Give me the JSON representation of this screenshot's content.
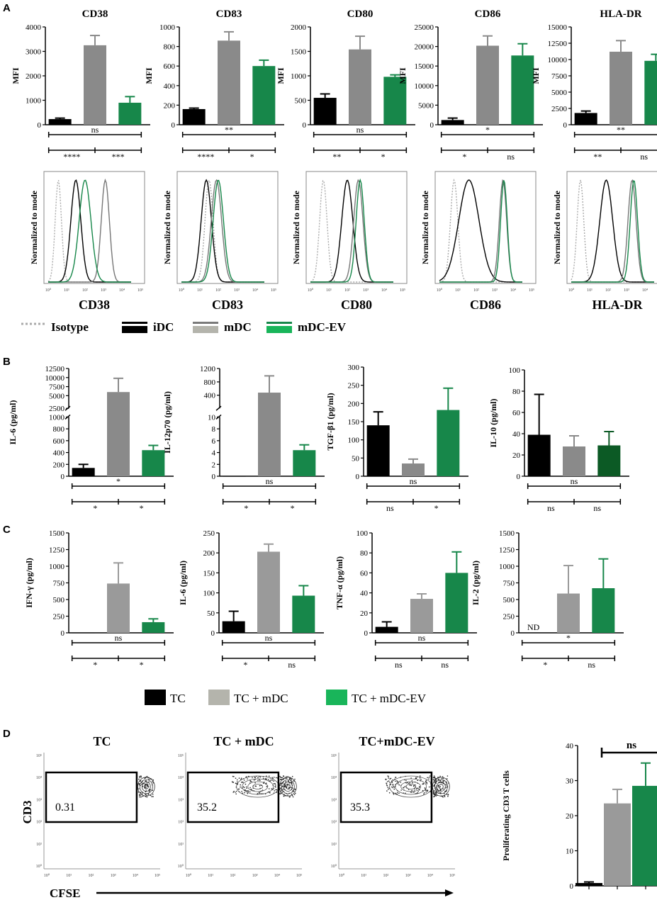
{
  "panels": {
    "a": "A",
    "b": "B",
    "c": "C",
    "d": "D"
  },
  "colors": {
    "idc": "#000000",
    "mdc": "#8a8a8a",
    "mdc_ev": "#17874a",
    "il10_ev": "#0c5a25",
    "tc": "#000000",
    "tc_mdc": "#9a9a9a",
    "tc_mdc_ev": "#17874a",
    "isotype": "#aaaaaa"
  },
  "legend_a": {
    "isotype": "Isotype",
    "idc": "iDC",
    "mdc": "mDC",
    "mdc_ev": "mDC-EV"
  },
  "legend_c": {
    "tc": "TC",
    "tc_mdc": "TC + mDC",
    "tc_mdc_ev": "TC + mDC-EV"
  },
  "histogram": {
    "ylabel": "Normalized to mode",
    "xticks": [
      "10⁰",
      "10¹",
      "10²",
      "10³",
      "10⁴",
      "10⁵"
    ],
    "markers": [
      "CD38",
      "CD83",
      "CD80",
      "CD86",
      "HLA-DR"
    ]
  },
  "flow": {
    "titles": [
      "TC",
      "TC + mDC",
      "TC+mDC-EV"
    ],
    "gates": [
      "0.31",
      "35.2",
      "35.3"
    ],
    "ylabel": "CD3",
    "xlabel": "CFSE",
    "ticks": [
      "10⁰",
      "10¹",
      "10²",
      "10³",
      "10⁴",
      "10⁵"
    ]
  },
  "chart_data": [
    {
      "type": "bar",
      "panel": "A",
      "title": "CD38",
      "ylabel": "MFI",
      "ylim": [
        0,
        4000
      ],
      "yticks": [
        "0",
        "1000",
        "2000",
        "3000",
        "4000"
      ],
      "categories": [
        "iDC",
        "mDC",
        "mDC-EV"
      ],
      "values": [
        230,
        3250,
        900
      ],
      "errors": [
        40,
        400,
        250
      ],
      "sig_top": "ns",
      "sig_bottom": [
        "****",
        "***"
      ]
    },
    {
      "type": "bar",
      "panel": "A",
      "title": "CD83",
      "ylabel": "MFI",
      "ylim": [
        0,
        1000
      ],
      "yticks": [
        "0",
        "200",
        "400",
        "600",
        "800",
        "1000"
      ],
      "categories": [
        "iDC",
        "mDC",
        "mDC-EV"
      ],
      "values": [
        160,
        860,
        600
      ],
      "errors": [
        10,
        90,
        60
      ],
      "sig_top": "**",
      "sig_bottom": [
        "****",
        "*"
      ]
    },
    {
      "type": "bar",
      "panel": "A",
      "title": "CD80",
      "ylabel": "MFI",
      "ylim": [
        0,
        2000
      ],
      "yticks": [
        "0",
        "500",
        "1000",
        "1500",
        "2000"
      ],
      "categories": [
        "iDC",
        "mDC",
        "mDC-EV"
      ],
      "values": [
        550,
        1540,
        980
      ],
      "errors": [
        80,
        270,
        40
      ],
      "sig_top": "ns",
      "sig_bottom": [
        "**",
        "*"
      ]
    },
    {
      "type": "bar",
      "panel": "A",
      "title": "CD86",
      "ylabel": "MFI",
      "ylim": [
        0,
        25000
      ],
      "yticks": [
        "0",
        "5000",
        "10000",
        "15000",
        "20000",
        "25000"
      ],
      "categories": [
        "iDC",
        "mDC",
        "mDC-EV"
      ],
      "values": [
        1200,
        20200,
        17700
      ],
      "errors": [
        500,
        2500,
        3000
      ],
      "sig_top": "*",
      "sig_bottom": [
        "*",
        "ns"
      ]
    },
    {
      "type": "bar",
      "panel": "A",
      "title": "HLA-DR",
      "ylabel": "MFI",
      "ylim": [
        0,
        15000
      ],
      "yticks": [
        "0",
        "2500",
        "5000",
        "7500",
        "10000",
        "12500",
        "15000"
      ],
      "categories": [
        "iDC",
        "mDC",
        "mDC-EV"
      ],
      "values": [
        1800,
        11200,
        9800
      ],
      "errors": [
        300,
        1700,
        1000
      ],
      "sig_top": "**",
      "sig_bottom": [
        "**",
        "ns"
      ]
    },
    {
      "type": "bar",
      "panel": "B",
      "title": "",
      "ylabel": "IL-6 (pg/ml)",
      "yticks": [
        "0",
        "200",
        "400",
        "600",
        "800",
        "1000",
        "2500",
        "5000",
        "7500",
        "10000",
        "12500"
      ],
      "categories": [
        "iDC",
        "mDC",
        "mDC-EV"
      ],
      "values": [
        140,
        6000,
        440
      ],
      "errors": [
        60,
        3800,
        80
      ],
      "sig_top": "*",
      "sig_bottom": [
        "*",
        "*"
      ]
    },
    {
      "type": "bar",
      "panel": "B",
      "title": "",
      "ylabel": "IL-12p70 (pg/ml)",
      "yticks": [
        "0",
        "2",
        "4",
        "6",
        "8",
        "10",
        "400",
        "800",
        "1200"
      ],
      "categories": [
        "iDC",
        "mDC",
        "mDC-EV"
      ],
      "values": [
        0.05,
        480,
        4.4
      ],
      "errors": [
        0,
        500,
        0.9
      ],
      "sig_top": "ns",
      "sig_bottom": [
        "*",
        "*"
      ]
    },
    {
      "type": "bar",
      "panel": "B",
      "title": "",
      "ylabel": "TGF-β1 (pg/ml)",
      "ylim": [
        0,
        300
      ],
      "yticks": [
        "0",
        "50",
        "100",
        "150",
        "200",
        "250",
        "300"
      ],
      "categories": [
        "iDC",
        "mDC",
        "mDC-EV"
      ],
      "values": [
        140,
        35,
        182
      ],
      "errors": [
        37,
        12,
        60
      ],
      "sig_top": "ns",
      "sig_bottom": [
        "ns",
        "*"
      ]
    },
    {
      "type": "bar",
      "panel": "B",
      "title": "",
      "ylabel": "IL-10 (pg/ml)",
      "ylim": [
        0,
        100
      ],
      "yticks": [
        "0",
        "20",
        "40",
        "60",
        "80",
        "100"
      ],
      "categories": [
        "iDC",
        "mDC",
        "mDC-EV"
      ],
      "values": [
        39,
        28,
        29
      ],
      "errors": [
        38,
        10,
        13
      ],
      "sig_top": "ns",
      "sig_bottom": [
        "ns",
        "ns"
      ]
    },
    {
      "type": "bar",
      "panel": "C",
      "title": "",
      "ylabel": "IFN-γ (pg/ml)",
      "ylim": [
        0,
        1500
      ],
      "yticks": [
        "0",
        "250",
        "500",
        "750",
        "1000",
        "1250",
        "1500"
      ],
      "categories": [
        "TC",
        "TC + mDC",
        "TC + mDC-EV"
      ],
      "values": [
        5,
        740,
        160
      ],
      "errors": [
        0,
        310,
        50
      ],
      "sig_top": "ns",
      "sig_bottom": [
        "*",
        "*"
      ]
    },
    {
      "type": "bar",
      "panel": "C",
      "title": "",
      "ylabel": "IL-6 (pg/ml)",
      "ylim": [
        0,
        250
      ],
      "yticks": [
        "0",
        "50",
        "100",
        "150",
        "200",
        "250"
      ],
      "categories": [
        "TC",
        "TC + mDC",
        "TC + mDC-EV"
      ],
      "values": [
        29,
        203,
        93
      ],
      "errors": [
        25,
        19,
        25
      ],
      "sig_top": "ns",
      "sig_bottom": [
        "*",
        "ns"
      ]
    },
    {
      "type": "bar",
      "panel": "C",
      "title": "",
      "ylabel": "TNF-α (pg/ml)",
      "ylim": [
        0,
        100
      ],
      "yticks": [
        "0",
        "20",
        "40",
        "60",
        "80",
        "100"
      ],
      "categories": [
        "TC",
        "TC + mDC",
        "TC + mDC-EV"
      ],
      "values": [
        6,
        34,
        60
      ],
      "errors": [
        5,
        5,
        21
      ],
      "sig_top": "ns",
      "sig_bottom": [
        "ns",
        "ns"
      ]
    },
    {
      "type": "bar",
      "panel": "C",
      "title": "",
      "ylabel": "IL-2 (pg/ml)",
      "ylim": [
        0,
        1500
      ],
      "yticks": [
        "0",
        "250",
        "500",
        "750",
        "1000",
        "1250",
        "1500"
      ],
      "categories": [
        "TC",
        "TC + mDC",
        "TC + mDC-EV"
      ],
      "values": [
        0,
        590,
        670
      ],
      "errors": [
        0,
        420,
        440
      ],
      "nd": "ND",
      "sig_top": "*",
      "sig_bottom": [
        "*",
        "ns"
      ]
    },
    {
      "type": "bar",
      "panel": "D",
      "title": "",
      "ylabel": "Proliferating CD3 T cells",
      "ylim": [
        0,
        40
      ],
      "yticks": [
        "0",
        "10",
        "20",
        "30",
        "40"
      ],
      "categories": [
        "TC",
        "TC + mDC",
        "TC + mDC-EV"
      ],
      "values": [
        0.8,
        23.5,
        28.5
      ],
      "errors": [
        0.3,
        4,
        6.5
      ],
      "sig_bracket": "ns"
    }
  ]
}
